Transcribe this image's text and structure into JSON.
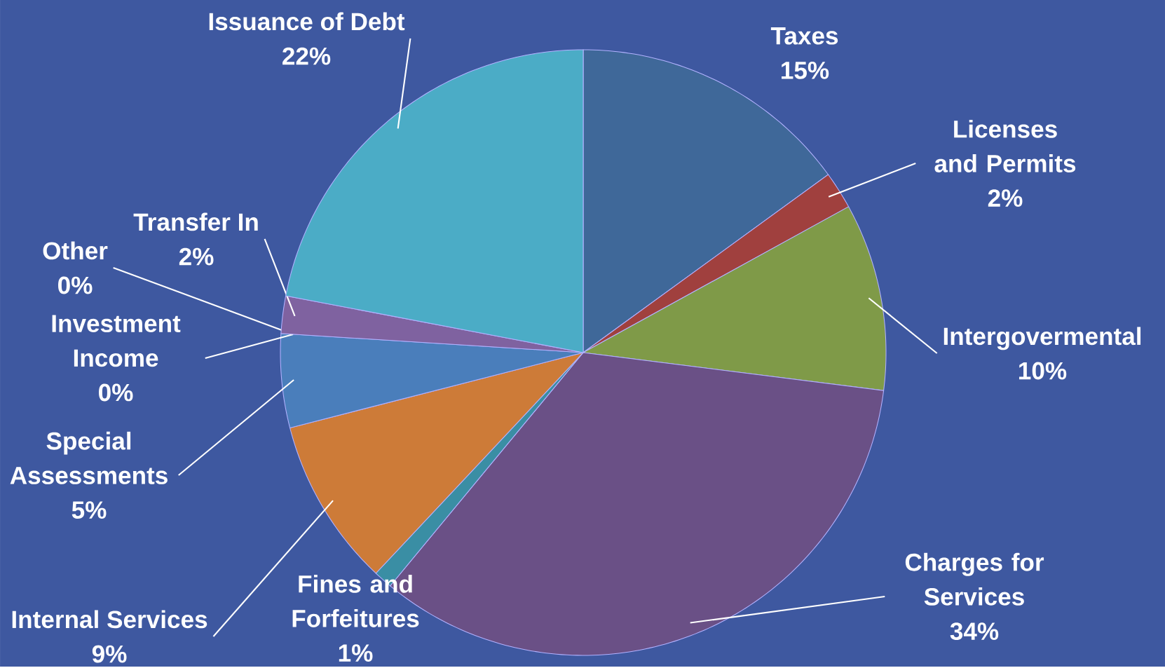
{
  "chart_data": {
    "type": "pie",
    "categories": [
      "Taxes",
      "Licenses and Permits",
      "Intergovermental",
      "Charges for Services",
      "Fines and Forfeitures",
      "Internal Services",
      "Special Assessments",
      "Investment Income",
      "Other",
      "Transfer In",
      "Issuance of Debt"
    ],
    "values": [
      15,
      2,
      10,
      34,
      1,
      9,
      5,
      0,
      0,
      2,
      22
    ],
    "value_labels": [
      "15%",
      "2%",
      "10%",
      "34%",
      "1%",
      "9%",
      "5%",
      "0%",
      "0%",
      "2%",
      "22%"
    ],
    "colors": [
      "#3f6899",
      "#a0403e",
      "#7f9a48",
      "#6a5086",
      "#3a8ea4",
      "#cd7b38",
      "#4a7ebb",
      "#9bbb59",
      "#c0c0c0",
      "#7f62a0",
      "#4bacc6"
    ]
  }
}
